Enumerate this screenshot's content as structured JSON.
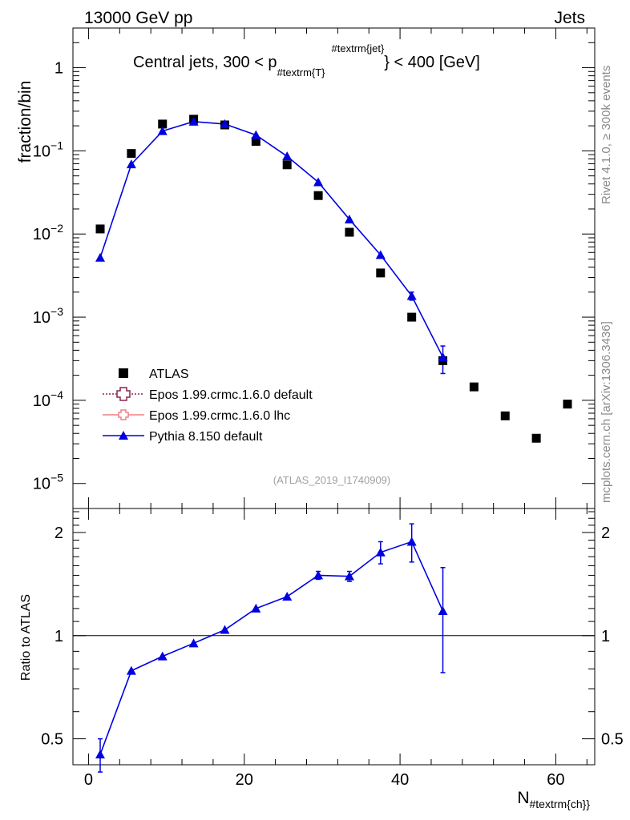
{
  "header": {
    "left": "13000 GeV pp",
    "right": "Jets",
    "side_top": "Rivet 4.1.0, ≥ 300k events",
    "side_bottom": "mcplots.cern.ch [arXiv:1306.3436]"
  },
  "main_panel": {
    "title_prefix": "Central jets, 300 < p",
    "title_sub": "#textrm{T}",
    "title_sup": "#textrm{jet}",
    "title_suffix": "} < 400 [GeV]",
    "ylabel": "fraction/bin",
    "watermark": "(ATLAS_2019_I1740909)",
    "yticks": [
      {
        "base": "10",
        "exp": "−5",
        "value": 1e-05
      },
      {
        "base": "10",
        "exp": "−4",
        "value": 0.0001
      },
      {
        "base": "10",
        "exp": "−3",
        "value": 0.001
      },
      {
        "base": "10",
        "exp": "−2",
        "value": 0.01
      },
      {
        "base": "10",
        "exp": "−1",
        "value": 0.1
      },
      {
        "base": "1",
        "exp": "",
        "value": 1
      }
    ]
  },
  "legend": [
    {
      "label": "ATLAS",
      "marker": "square",
      "color": "#000000"
    },
    {
      "label": "Epos 1.99.crmc.1.6.0 default",
      "marker": "open-cross",
      "color": "#8b2252"
    },
    {
      "label": "Epos 1.99.crmc.1.6.0 lhc",
      "marker": "open-cross",
      "color": "#f08080"
    },
    {
      "label": "Pythia 8.150 default",
      "marker": "triangle",
      "color": "#0000e0"
    }
  ],
  "ratio_panel": {
    "ylabel": "Ratio to ATLAS",
    "yticks": [
      "0.5",
      "1",
      "2"
    ],
    "ytick_values": [
      0.5,
      1,
      2
    ]
  },
  "xaxis": {
    "label": "N",
    "label_sub": "#textrm{ch}}",
    "ticks": [
      "0",
      "20",
      "40",
      "60"
    ],
    "tick_values": [
      0,
      20,
      40,
      60
    ]
  },
  "chart_data": {
    "type": "scatter",
    "x_range": [
      -2,
      65
    ],
    "y_range_main": [
      5e-06,
      3
    ],
    "y_scale_main": "log",
    "y_range_ratio": [
      0.42,
      2.35
    ],
    "y_scale_ratio": "log",
    "series": [
      {
        "name": "ATLAS",
        "x": [
          1.5,
          5.5,
          9.5,
          13.5,
          17.5,
          21.5,
          25.5,
          29.5,
          33.5,
          37.5,
          41.5,
          45.5,
          49.5,
          53.5,
          57.5,
          61.5
        ],
        "y": [
          0.0115,
          0.093,
          0.21,
          0.24,
          0.205,
          0.13,
          0.068,
          0.029,
          0.0105,
          0.0034,
          0.001,
          0.0003,
          0.000145,
          6.5e-05,
          3.5e-05,
          9e-05
        ]
      },
      {
        "name": "Pythia 8.150 default",
        "x": [
          1.5,
          5.5,
          9.5,
          13.5,
          17.5,
          21.5,
          25.5,
          29.5,
          33.5,
          37.5,
          41.5,
          45.5
        ],
        "y": [
          0.0052,
          0.069,
          0.173,
          0.225,
          0.21,
          0.155,
          0.086,
          0.042,
          0.015,
          0.0056,
          0.0018,
          0.00033
        ],
        "yerr": [
          0,
          0,
          0,
          0,
          0,
          0,
          0,
          0,
          0,
          0,
          0.0002,
          0.00012
        ],
        "ratio": [
          0.45,
          0.79,
          0.87,
          0.95,
          1.04,
          1.2,
          1.3,
          1.5,
          1.49,
          1.75,
          1.88,
          1.18
        ],
        "ratio_err": [
          0.05,
          0,
          0,
          0,
          0,
          0,
          0,
          0.04,
          0.05,
          0.13,
          0.24,
          0.4
        ]
      }
    ]
  }
}
